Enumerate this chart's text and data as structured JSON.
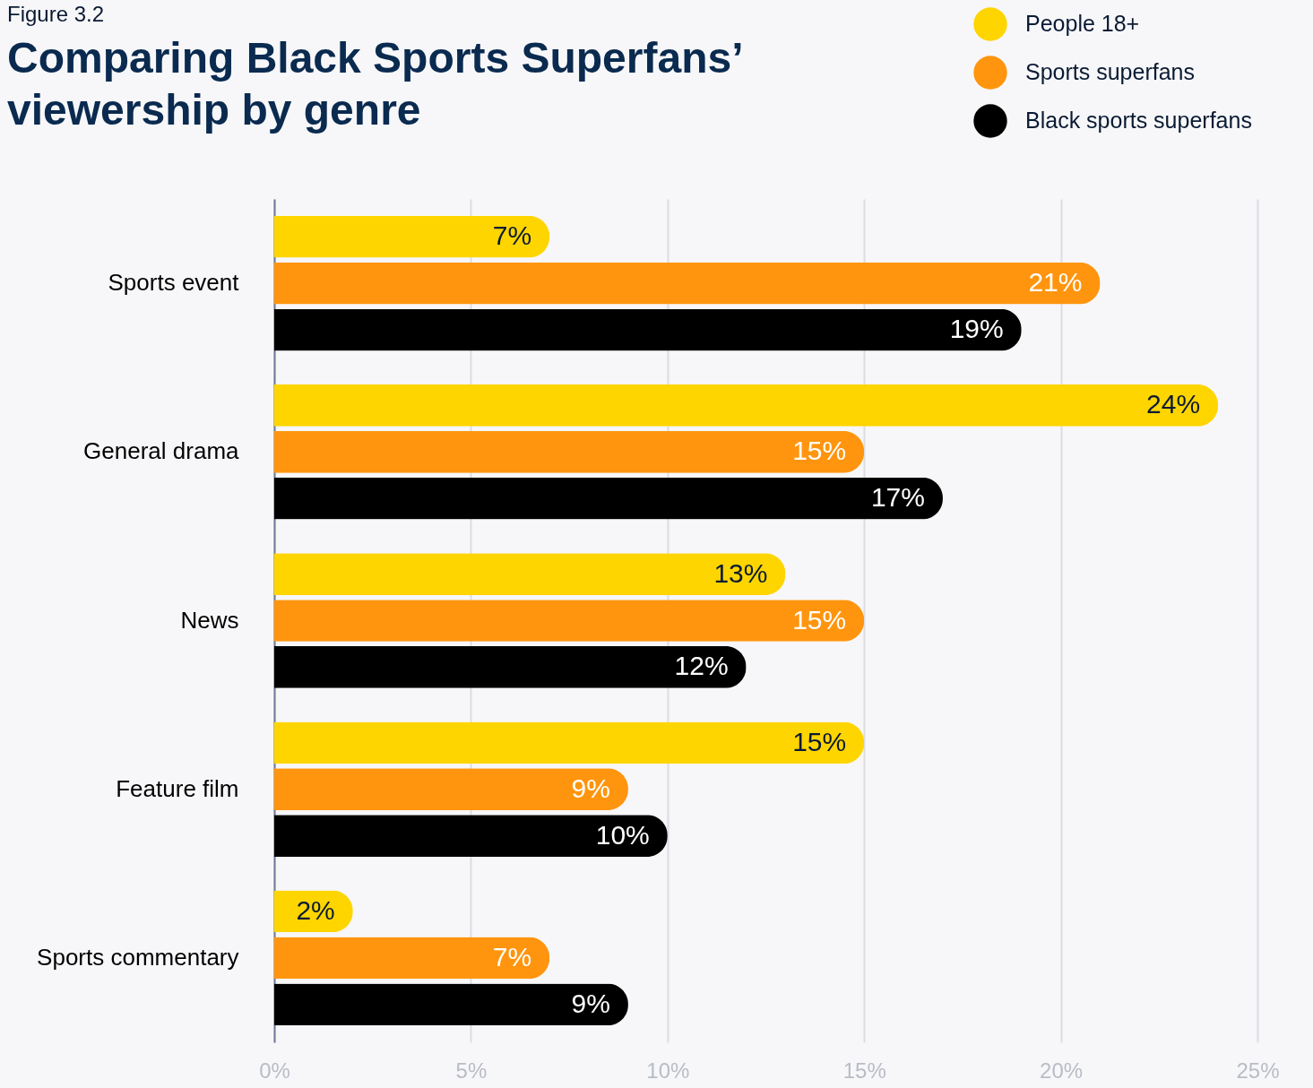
{
  "chart_data": {
    "type": "bar",
    "orientation": "horizontal",
    "title": "Comparing Black Sports Superfans’ viewership by genre",
    "annotations": [
      "Figure 3.2"
    ],
    "categories": [
      "Sports event",
      "General drama",
      "News",
      "Feature film",
      "Sports commentary"
    ],
    "series": [
      {
        "name": "People 18+",
        "color": "#ffd500",
        "values": [
          7,
          24,
          13,
          15,
          2
        ],
        "value_labels": [
          "7%",
          "24%",
          "13%",
          "15%",
          "2%"
        ]
      },
      {
        "name": "Sports superfans",
        "color": "#ff950e",
        "values": [
          21,
          15,
          15,
          9,
          7
        ],
        "value_labels": [
          "21%",
          "15%",
          "15%",
          "9%",
          "7%"
        ]
      },
      {
        "name": "Black sports superfans",
        "color": "#000000",
        "values": [
          19,
          17,
          12,
          10,
          9
        ],
        "value_labels": [
          "19%",
          "17%",
          "12%",
          "10%",
          "9%"
        ]
      }
    ],
    "xlim": [
      0,
      25
    ],
    "xticks": [
      {
        "value": 0,
        "label": "0%"
      },
      {
        "value": 5,
        "label": "5%"
      },
      {
        "value": 10,
        "label": "10%"
      },
      {
        "value": 15,
        "label": "15%"
      },
      {
        "value": 20,
        "label": "20%"
      },
      {
        "value": 25,
        "label": "25%"
      }
    ],
    "grid": "x",
    "legend": "top right"
  }
}
